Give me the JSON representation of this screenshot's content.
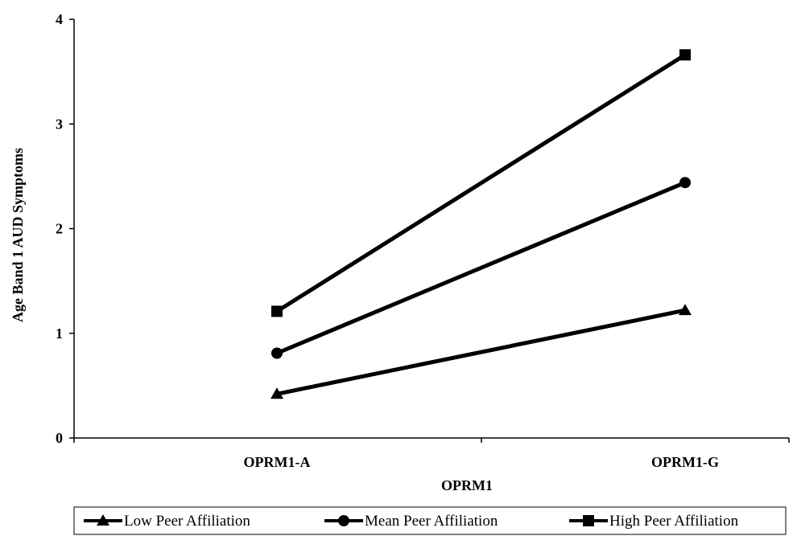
{
  "chart_data": {
    "type": "line",
    "title": "",
    "xlabel": "OPRM1",
    "ylabel": "Age Band 1 AUD Symptoms",
    "categories": [
      "OPRM1-A",
      "OPRM1-G"
    ],
    "ylim": [
      0,
      4
    ],
    "yticks": [
      "0",
      "1",
      "2",
      "3",
      "4"
    ],
    "grid": false,
    "legend_position": "bottom",
    "series": [
      {
        "name": "Low Peer Affiliation",
        "marker": "triangle",
        "color": "#000000",
        "values": [
          0.42,
          1.22
        ]
      },
      {
        "name": "Mean Peer Affiliation",
        "marker": "circle",
        "color": "#000000",
        "values": [
          0.81,
          2.44
        ]
      },
      {
        "name": "High Peer Affiliation",
        "marker": "square",
        "color": "#000000",
        "values": [
          1.21,
          3.66
        ]
      }
    ]
  }
}
